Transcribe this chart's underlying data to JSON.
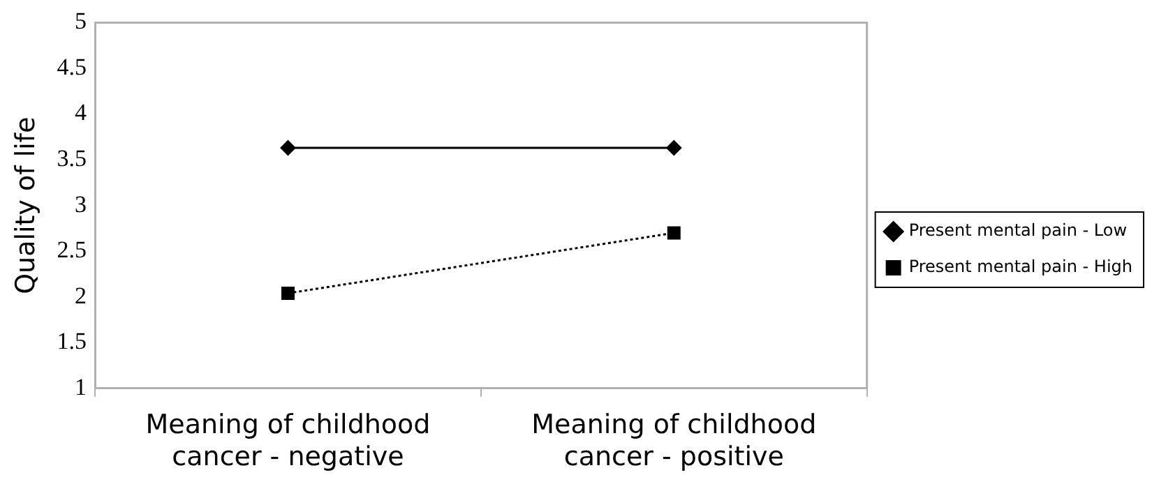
{
  "chart_data": {
    "type": "line",
    "ylabel": "Quality of life",
    "categories": [
      "Meaning of childhood cancer - negative",
      "Meaning of childhood cancer - positive"
    ],
    "series": [
      {
        "name": "Present mental pain - Low",
        "color": "#000000",
        "values": [
          3.63,
          3.63
        ],
        "marker": "diamond",
        "line_style": "solid"
      },
      {
        "name": "Present mental pain - High",
        "color": "#000000",
        "values": [
          2.04,
          2.7
        ],
        "marker": "square",
        "line_style": "dotted"
      }
    ],
    "ylim": [
      1,
      5
    ],
    "yticks": [
      1,
      1.5,
      2,
      2.5,
      3,
      3.5,
      4,
      4.5,
      5
    ],
    "grid": false,
    "legend": "right"
  }
}
